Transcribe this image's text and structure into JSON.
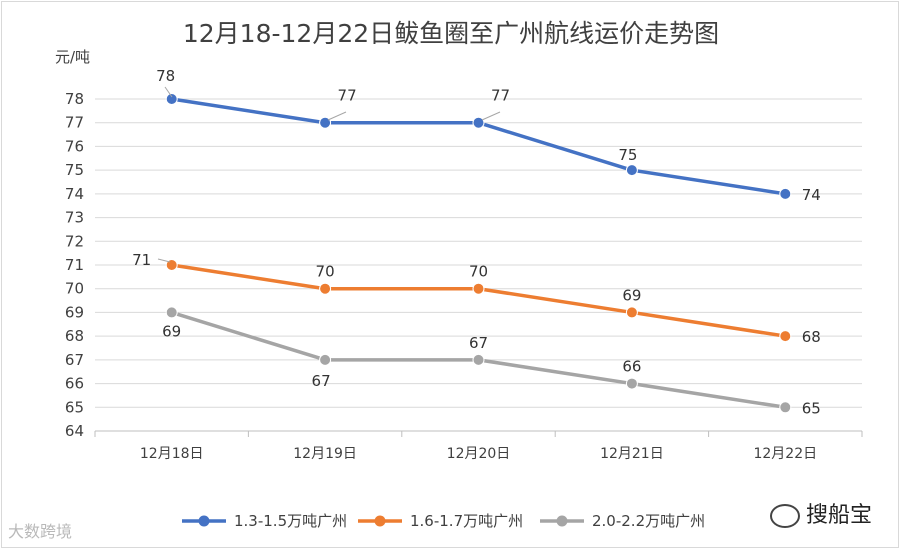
{
  "chart_data": {
    "type": "line",
    "title": "12月18-12月22日鲅鱼圈至广州航线运价走势图",
    "ylabel": "元/吨",
    "categories": [
      "12月18日",
      "12月19日",
      "12月20日",
      "12月21日",
      "12月22日"
    ],
    "yticks": [
      64,
      65,
      66,
      67,
      68,
      69,
      70,
      71,
      72,
      73,
      74,
      75,
      76,
      77,
      78
    ],
    "ylim": [
      64,
      78
    ],
    "grid": true,
    "legend_position": "bottom",
    "series": [
      {
        "name": "1.3-1.5万吨广州",
        "color": "#4472c4",
        "values": [
          78,
          77,
          77,
          75,
          74
        ]
      },
      {
        "name": "1.6-1.7万吨广州",
        "color": "#ed7d31",
        "values": [
          71,
          70,
          70,
          69,
          68
        ]
      },
      {
        "name": "2.0-2.2万吨广州",
        "color": "#a5a5a5",
        "values": [
          69,
          67,
          67,
          66,
          65
        ]
      }
    ]
  },
  "watermarks": {
    "left": "大数跨境",
    "right": "搜船宝"
  }
}
